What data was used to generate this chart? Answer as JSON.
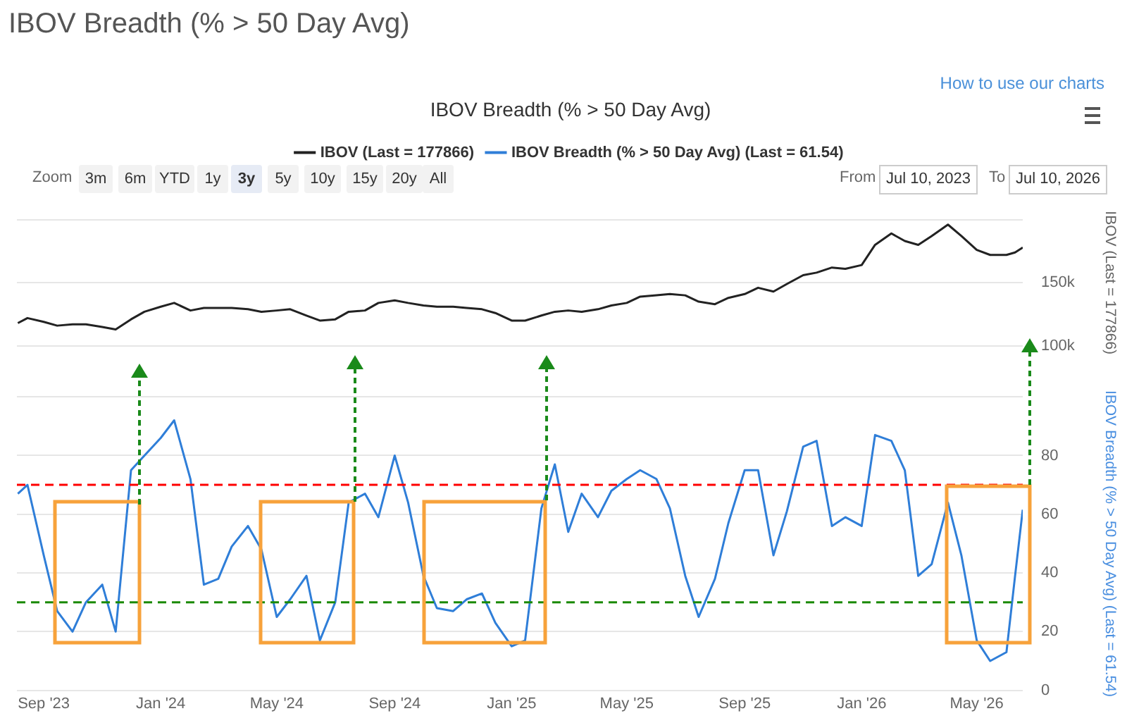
{
  "chart_data": [
    {
      "type": "line",
      "title": "IBOV Breadth (% > 50 Day Avg)",
      "ylabel": "IBOV (Last = 177866)",
      "x": [
        "2023-08-05",
        "2023-08-15",
        "2023-09-01",
        "2023-09-15",
        "2023-10-01",
        "2023-10-15",
        "2023-11-01",
        "2023-11-15",
        "2023-12-01",
        "2023-12-15",
        "2024-01-01",
        "2024-01-15",
        "2024-02-01",
        "2024-02-15",
        "2024-03-01",
        "2024-03-15",
        "2024-04-01",
        "2024-04-15",
        "2024-05-01",
        "2024-05-15",
        "2024-06-01",
        "2024-06-15",
        "2024-07-01",
        "2024-07-15",
        "2024-08-01",
        "2024-08-15",
        "2024-09-01",
        "2024-09-15",
        "2024-10-01",
        "2024-10-15",
        "2024-11-01",
        "2024-11-15",
        "2024-12-01",
        "2024-12-15",
        "2025-01-01",
        "2025-01-15",
        "2025-02-01",
        "2025-02-15",
        "2025-03-01",
        "2025-03-15",
        "2025-04-01",
        "2025-04-15",
        "2025-05-01",
        "2025-05-15",
        "2025-06-01",
        "2025-06-15",
        "2025-07-01",
        "2025-07-15",
        "2025-08-01",
        "2025-08-15",
        "2025-09-01",
        "2025-09-15",
        "2025-10-01",
        "2025-10-15",
        "2025-11-01",
        "2025-11-15",
        "2025-12-01",
        "2025-12-15",
        "2026-01-01",
        "2026-01-15",
        "2026-02-01",
        "2026-02-15",
        "2026-03-01",
        "2026-03-15",
        "2026-04-01",
        "2026-04-15",
        "2026-05-01",
        "2026-05-15",
        "2026-06-01",
        "2026-06-10",
        "2026-06-18"
      ],
      "series": [
        {
          "name": "IBOV (Last = 177866)",
          "color": "#222222",
          "values": [
            118000,
            122000,
            119000,
            116000,
            117000,
            117000,
            115000,
            113000,
            121000,
            127000,
            131000,
            134000,
            128000,
            130000,
            130000,
            130000,
            129000,
            127000,
            128000,
            129000,
            124000,
            120000,
            121000,
            127000,
            128000,
            134000,
            136000,
            134000,
            132000,
            131000,
            131000,
            130000,
            129000,
            126000,
            120000,
            120000,
            124000,
            127000,
            128000,
            127000,
            129000,
            132000,
            134000,
            139000,
            140000,
            141000,
            140000,
            135000,
            133000,
            138000,
            141000,
            146000,
            143000,
            149000,
            156000,
            158000,
            162000,
            161000,
            164000,
            180000,
            189000,
            183000,
            180000,
            187000,
            196000,
            187000,
            176000,
            172000,
            172000,
            174000,
            177866
          ]
        }
      ],
      "xlim": [
        "2023-08-04",
        "2026-06-18"
      ],
      "ylim": [
        100000,
        200000
      ],
      "yticks": [
        {
          "value": 100000,
          "label": "100k"
        },
        {
          "value": 150000,
          "label": "150k"
        },
        {
          "value": 200000,
          "label": null
        }
      ],
      "tick_labels": "y",
      "grid": "y",
      "legend": "top",
      "marker": "none",
      "annotations": [
        "IBOV Breadth (% > 50 Day Avg)",
        "How to use our charts",
        "Zoom",
        "3m",
        "6m",
        "YTD",
        "1y",
        "3y",
        "5y",
        "10y",
        "15y",
        "20y",
        "All",
        "From",
        "Jul 10, 2023",
        "To",
        "Jul 10, 2026"
      ]
    },
    {
      "type": "line",
      "ylabel": "IBOV Breadth (% > 50 Day Avg) (Last = 61.54)",
      "x": [
        "2023-08-05",
        "2023-08-15",
        "2023-09-01",
        "2023-09-15",
        "2023-10-01",
        "2023-10-15",
        "2023-11-01",
        "2023-11-15",
        "2023-12-01",
        "2023-12-15",
        "2024-01-01",
        "2024-01-15",
        "2024-02-01",
        "2024-02-15",
        "2024-03-01",
        "2024-03-15",
        "2024-04-01",
        "2024-04-15",
        "2024-05-01",
        "2024-05-15",
        "2024-06-01",
        "2024-06-15",
        "2024-07-01",
        "2024-07-15",
        "2024-08-01",
        "2024-08-15",
        "2024-09-01",
        "2024-09-15",
        "2024-10-01",
        "2024-10-15",
        "2024-11-01",
        "2024-11-15",
        "2024-12-01",
        "2024-12-15",
        "2025-01-01",
        "2025-01-15",
        "2025-02-01",
        "2025-02-15",
        "2025-03-01",
        "2025-03-15",
        "2025-04-01",
        "2025-04-15",
        "2025-05-01",
        "2025-05-15",
        "2025-06-01",
        "2025-06-15",
        "2025-07-01",
        "2025-07-15",
        "2025-08-01",
        "2025-08-15",
        "2025-09-01",
        "2025-09-15",
        "2025-10-01",
        "2025-10-15",
        "2025-11-01",
        "2025-11-15",
        "2025-12-01",
        "2025-12-15",
        "2026-01-01",
        "2026-01-15",
        "2026-02-01",
        "2026-02-15",
        "2026-03-01",
        "2026-03-15",
        "2026-04-01",
        "2026-04-15",
        "2026-05-01",
        "2026-05-15",
        "2026-06-01",
        "2026-06-10",
        "2026-06-18"
      ],
      "series": [
        {
          "name": "IBOV Breadth (% > 50 Day Avg) (Last = 61.54)",
          "color": "#2f7ed8",
          "values": [
            67,
            70,
            46,
            27,
            20,
            30,
            36,
            20,
            75,
            80,
            86,
            92,
            72,
            36,
            38,
            49,
            56,
            48,
            25,
            31,
            39,
            17,
            30,
            64,
            67,
            59,
            80,
            64,
            39,
            28,
            27,
            31,
            33,
            23,
            15,
            17,
            62,
            77,
            54,
            67,
            59,
            68,
            72,
            75,
            72,
            62,
            39,
            25,
            38,
            57,
            75,
            75,
            46,
            61,
            83,
            85,
            56,
            59,
            56,
            87,
            85,
            75,
            39,
            43,
            64,
            46,
            17,
            10,
            13,
            39,
            61.54
          ]
        }
      ],
      "xlim": [
        "2023-08-04",
        "2026-06-18"
      ],
      "xticks": [
        {
          "value": "2023-09-01",
          "label": "Sep '23"
        },
        {
          "value": "2024-01-01",
          "label": "Jan '24"
        },
        {
          "value": "2024-05-01",
          "label": "May '24"
        },
        {
          "value": "2024-09-01",
          "label": "Sep '24"
        },
        {
          "value": "2025-01-01",
          "label": "Jan '25"
        },
        {
          "value": "2025-05-01",
          "label": "May '25"
        },
        {
          "value": "2025-09-01",
          "label": "Sep '25"
        },
        {
          "value": "2026-01-01",
          "label": "Jan '26"
        },
        {
          "value": "2026-05-01",
          "label": "May '26"
        }
      ],
      "ylim": [
        0,
        100
      ],
      "yticks": [
        0,
        20,
        40,
        60,
        80,
        {
          "value": 100,
          "label": null
        }
      ],
      "ref_lines": [
        {
          "axis": "y",
          "value": 70,
          "color": "#ff0000",
          "line_style": "dashed"
        },
        {
          "axis": "y",
          "value": 30,
          "color": "#1a8a00",
          "line_style": "dashed"
        }
      ],
      "grid": "y",
      "marker": "none"
    }
  ]
}
